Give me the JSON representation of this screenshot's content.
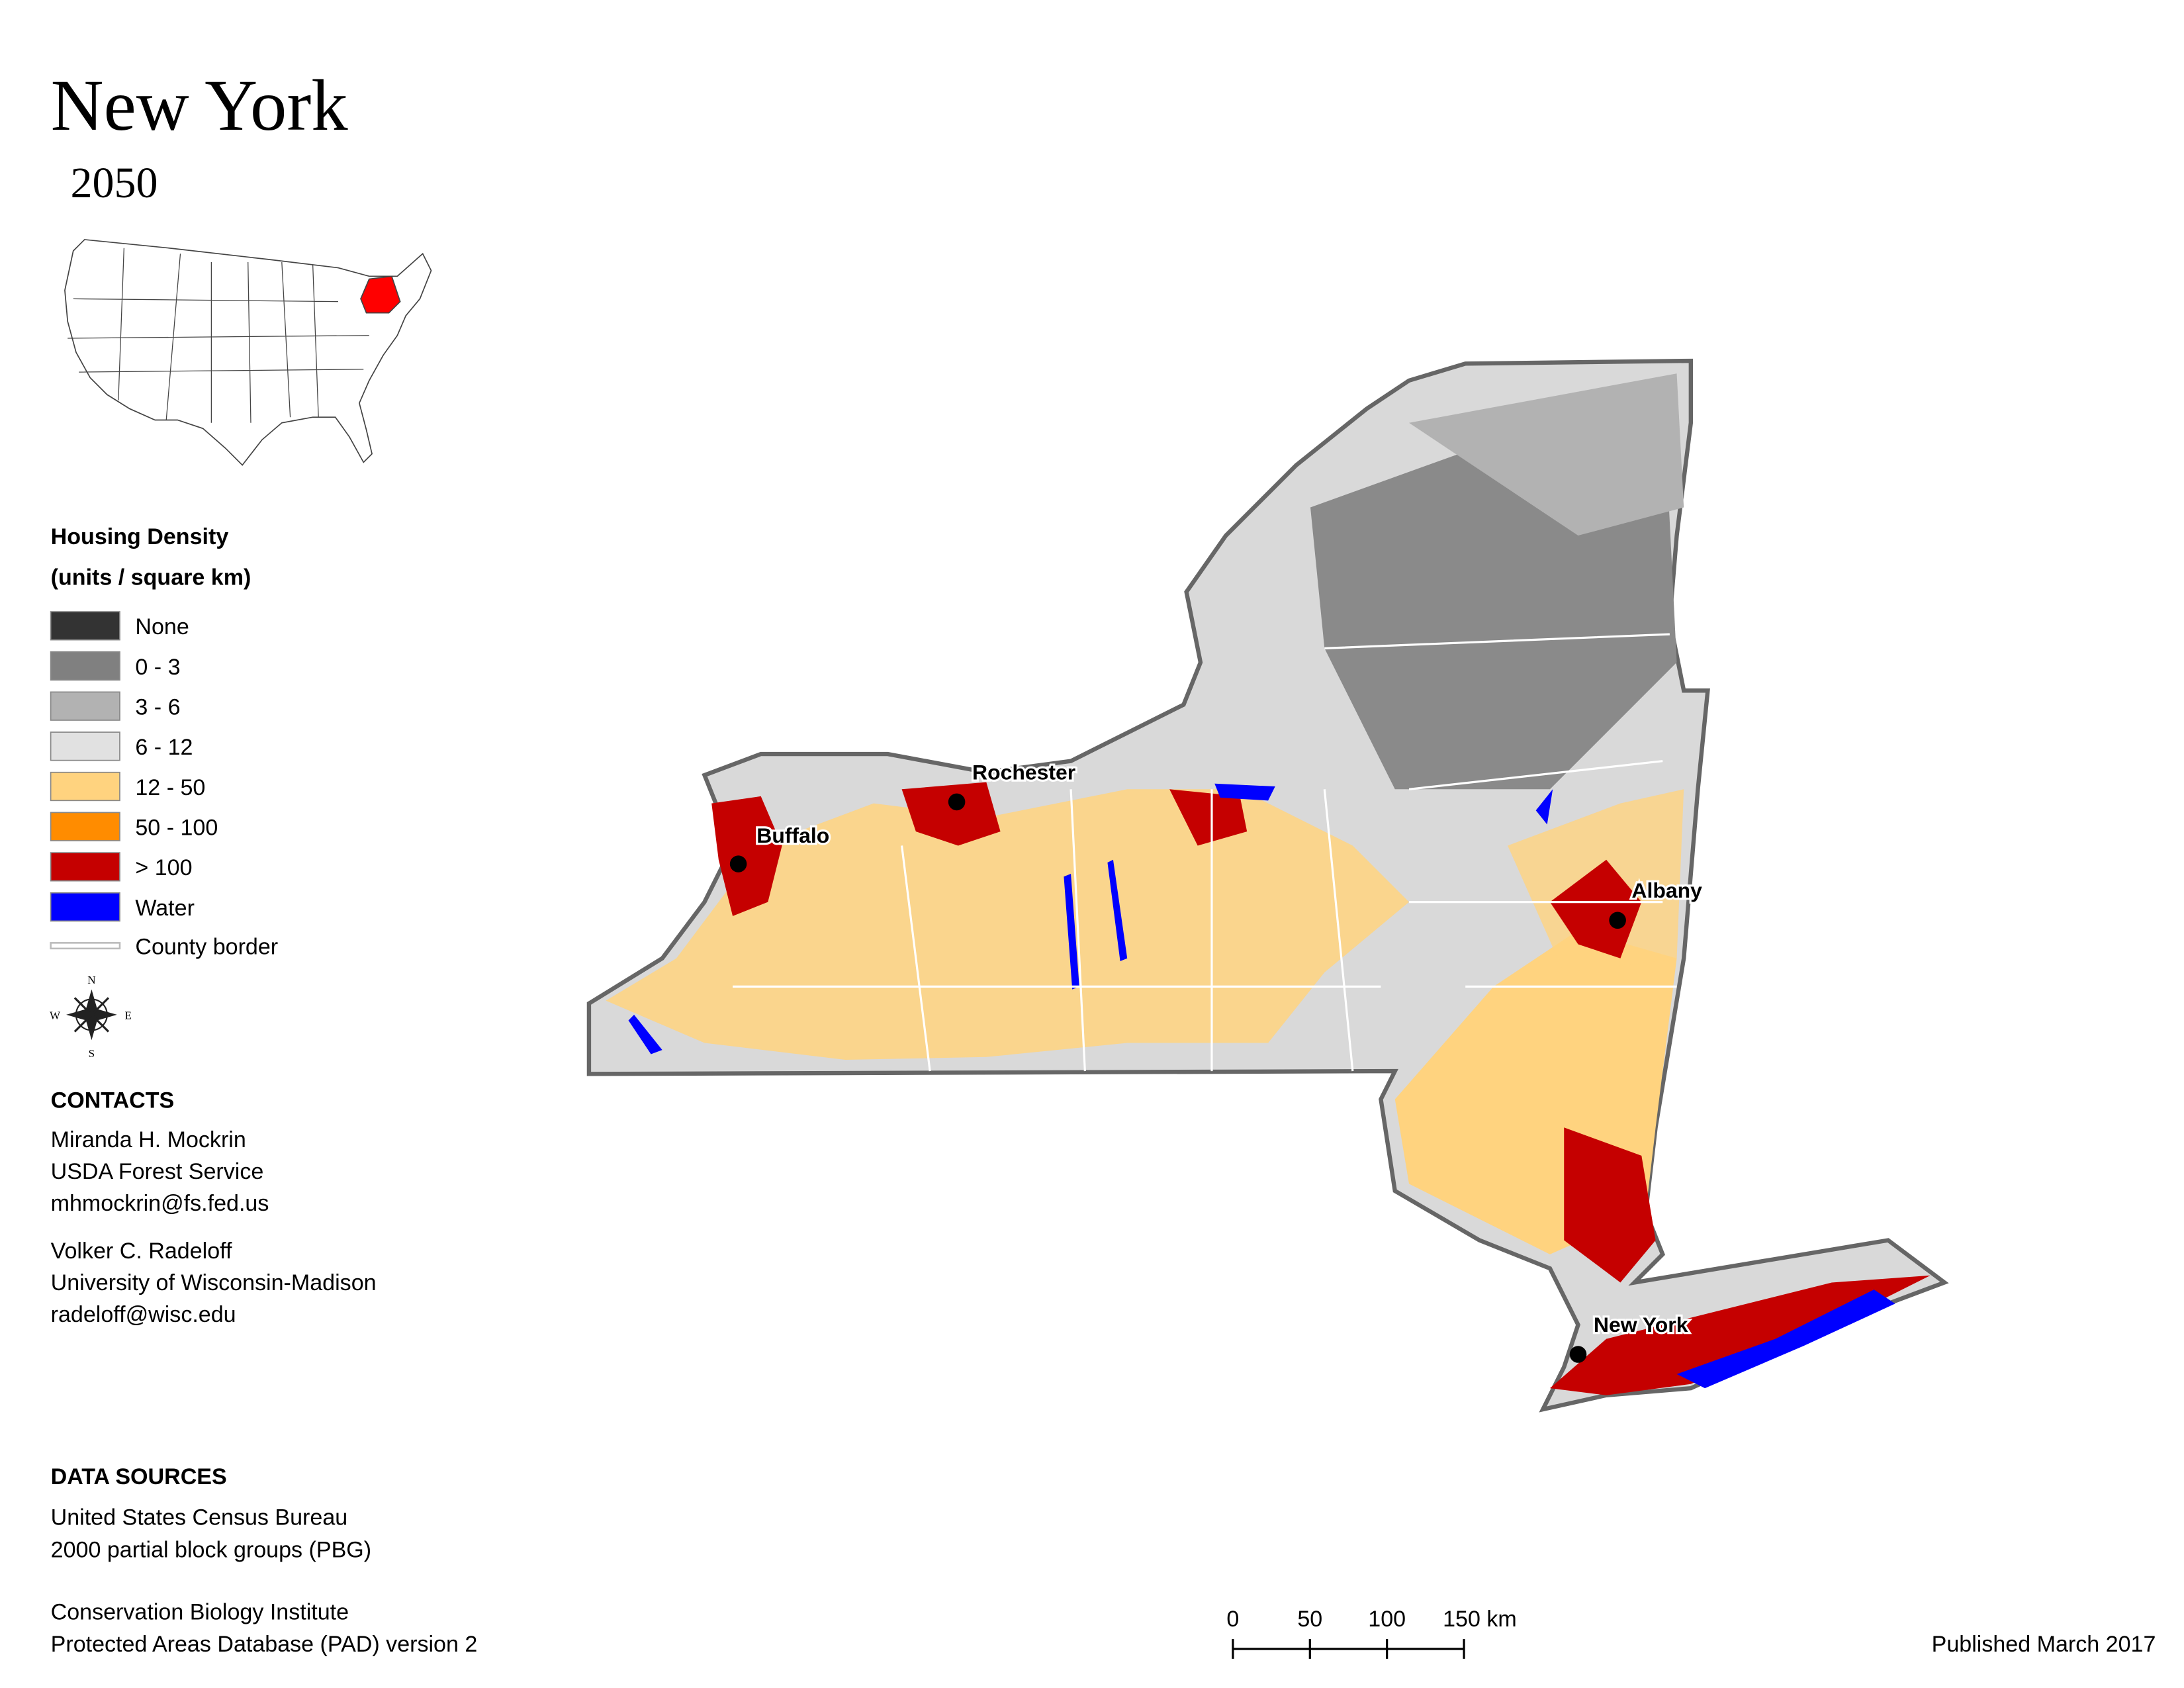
{
  "header": {
    "title": "New York",
    "subtitle": "2050"
  },
  "legend": {
    "title": "Housing Density",
    "subtitle": "(units / square km)",
    "items": [
      {
        "label": "None",
        "color": "#333333"
      },
      {
        "label": "0 - 3",
        "color": "#808080"
      },
      {
        "label": "3 - 6",
        "color": "#b2b2b2"
      },
      {
        "label": "6 - 12",
        "color": "#e1e1e1"
      },
      {
        "label": "12 - 50",
        "color": "#ffd37f"
      },
      {
        "label": "50 - 100",
        "color": "#ff8c00"
      },
      {
        "label": "> 100",
        "color": "#c50000"
      },
      {
        "label": "Water",
        "color": "#0000ff"
      }
    ],
    "county_border": {
      "label": "County border"
    }
  },
  "compass": {
    "n": "N",
    "e": "E",
    "s": "S",
    "w": "W"
  },
  "cities": [
    {
      "label": "Rochester"
    },
    {
      "label": "Buffalo"
    },
    {
      "label": "Albany"
    },
    {
      "label": "New York"
    }
  ],
  "contacts": {
    "heading": "CONTACTS",
    "people": [
      [
        "Miranda H. Mockrin",
        "USDA Forest Service",
        "mhmockrin@fs.fed.us"
      ],
      [
        "Volker C. Radeloff",
        "University of Wisconsin-Madison",
        "radeloff@wisc.edu"
      ]
    ]
  },
  "data_sources": {
    "heading": "DATA SOURCES",
    "groups": [
      [
        "United States Census Bureau",
        "2000 partial block groups (PBG)"
      ],
      [
        "Conservation Biology Institute",
        "Protected Areas Database (PAD) version 2"
      ]
    ]
  },
  "scale_bar": {
    "ticks": [
      0,
      50,
      100,
      {
        "value": 150,
        "label": "150 km"
      }
    ]
  },
  "footer": {
    "published": "Published March 2017"
  }
}
